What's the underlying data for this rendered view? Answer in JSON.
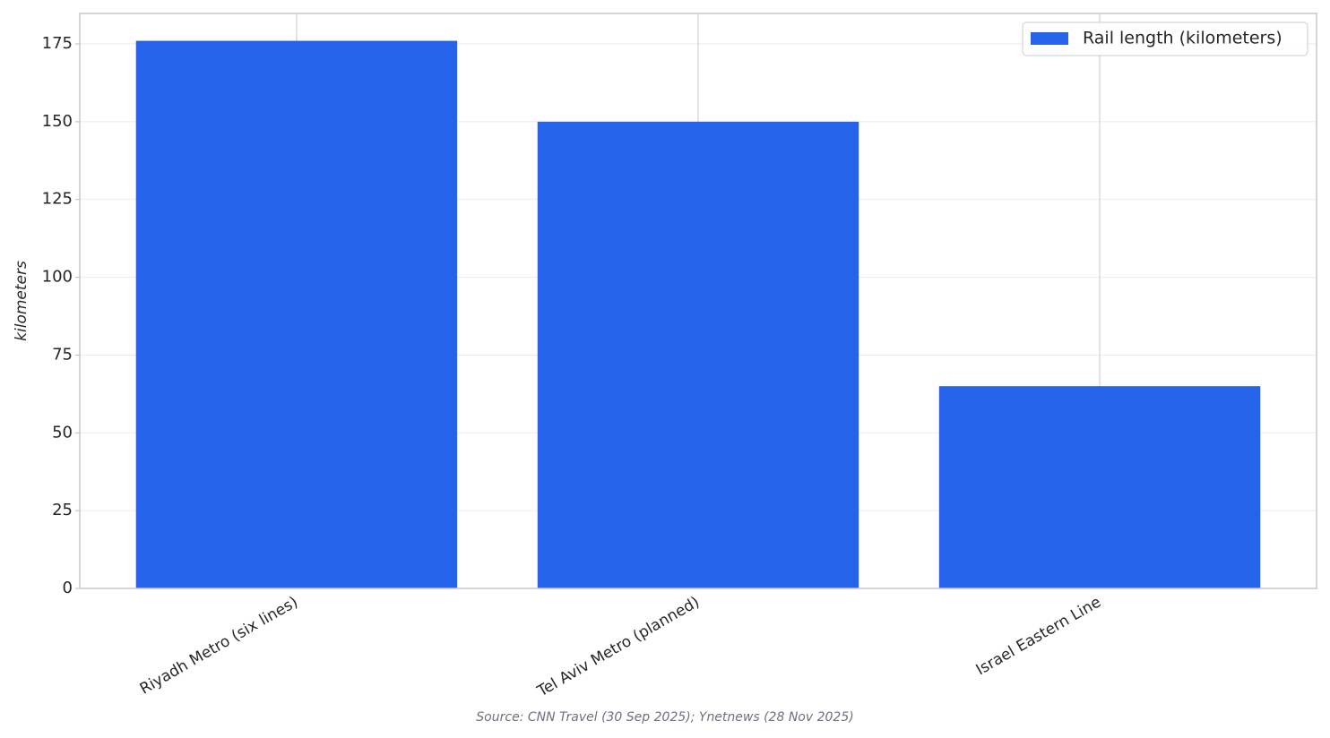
{
  "chart_data": {
    "type": "bar",
    "categories": [
      "Riyadh Metro (six lines)",
      "Tel Aviv Metro (planned)",
      "Israel Eastern Line"
    ],
    "series": [
      {
        "name": "Rail length (kilometers)",
        "color": "#2563eb",
        "values": [
          176,
          150,
          65
        ]
      }
    ],
    "ylabel": "kilometers",
    "ylim": [
      0,
      184.8
    ],
    "yticks": [
      0,
      25,
      50,
      75,
      100,
      125,
      150,
      175
    ],
    "grid": true,
    "legend": "upper right",
    "source": "Source: CNN Travel (30 Sep 2025); Ynetnews (28 Nov 2025)"
  }
}
